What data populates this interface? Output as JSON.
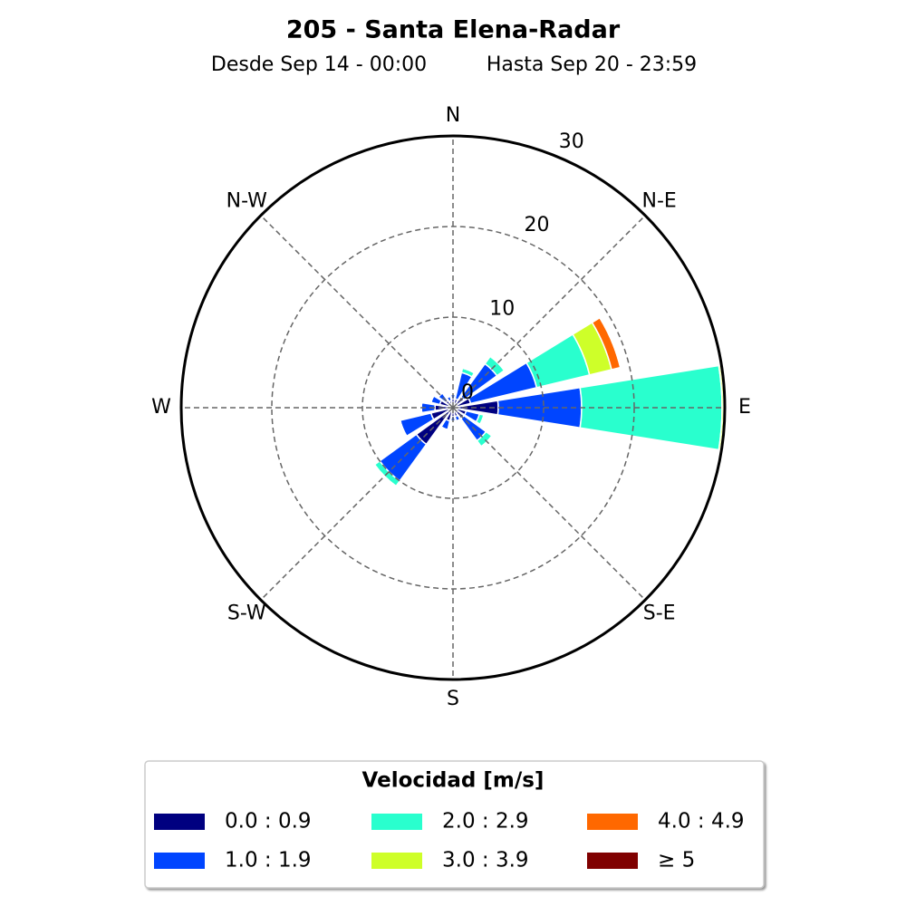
{
  "chart_data": {
    "type": "windrose",
    "title": "205 - Santa Elena-Radar",
    "subtitle": [
      "Desde Sep 14 - 00:00",
      "Hasta Sep 20 - 23:59"
    ],
    "categories": [
      "N",
      null,
      "N-E",
      null,
      "E",
      null,
      "S-E",
      null,
      "S",
      null,
      "S-W",
      null,
      "W",
      null,
      "N-W",
      null
    ],
    "legend_title": "Velocidad [m/s]",
    "series": [
      {
        "name": "0.0 : 0.9",
        "color": "#000080",
        "values": [
          1,
          1,
          1.5,
          2,
          5,
          1.5,
          1.5,
          1,
          1,
          1.5,
          5,
          2.5,
          2,
          1.5,
          1,
          0.8
        ]
      },
      {
        "name": "1.0 : 1.9",
        "color": "#0045ff",
        "values": [
          0.5,
          3,
          4.5,
          7.5,
          9.2,
          1.5,
          3,
          0.5,
          0.5,
          1,
          5,
          3.5,
          1.5,
          1,
          1,
          0.5
        ]
      },
      {
        "name": "2.0 : 2.9",
        "color": "#29ffce",
        "values": [
          0,
          0.5,
          1,
          6,
          15.5,
          0.5,
          0.8,
          0,
          0,
          0,
          0.7,
          0,
          0,
          0,
          0,
          0
        ]
      },
      {
        "name": "3.0 : 3.9",
        "color": "#ceff29",
        "values": [
          0,
          0,
          0,
          2.5,
          0.2,
          0,
          0,
          0,
          0,
          0,
          0,
          0,
          0,
          0,
          0,
          0
        ]
      },
      {
        "name": "4.0 : 4.9",
        "color": "#ff6800",
        "values": [
          0,
          0,
          0,
          1,
          0,
          0,
          0,
          0,
          0,
          0,
          0,
          0,
          0,
          0,
          0,
          0
        ]
      },
      {
        "name": "≥  5",
        "color": "#800000",
        "values": [
          0,
          0,
          0,
          0,
          0,
          0,
          0,
          0,
          0,
          0,
          0,
          0,
          0,
          0,
          0,
          0
        ]
      }
    ],
    "rlim": [
      0,
      30
    ],
    "rticks": [
      0,
      10,
      20,
      30
    ],
    "grid": true
  }
}
